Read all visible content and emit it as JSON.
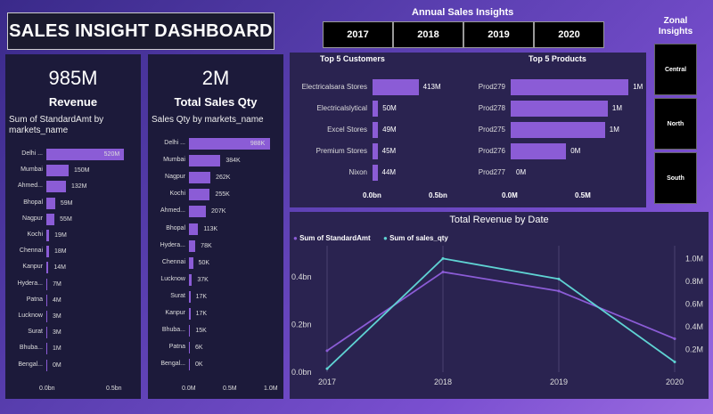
{
  "header": {
    "title": "SALES INSIGHT DASHBOARD"
  },
  "annual": {
    "title": "Annual Sales Insights",
    "years": [
      "2017",
      "2018",
      "2019",
      "2020"
    ]
  },
  "zonal": {
    "title": "Zonal Insights",
    "zones": [
      "Central",
      "North",
      "South"
    ]
  },
  "revenue_card": {
    "kpi_value": "985M",
    "kpi_label": "Revenue",
    "chart_title": "Sum of StandardAmt by markets_name",
    "rows": [
      {
        "label": "Delhi ...",
        "value": 520,
        "text": "520M"
      },
      {
        "label": "Mumbai",
        "value": 150,
        "text": "150M"
      },
      {
        "label": "Ahmed...",
        "value": 132,
        "text": "132M"
      },
      {
        "label": "Bhopal",
        "value": 59,
        "text": "59M"
      },
      {
        "label": "Nagpur",
        "value": 55,
        "text": "55M"
      },
      {
        "label": "Kochi",
        "value": 19,
        "text": "19M"
      },
      {
        "label": "Chennai",
        "value": 18,
        "text": "18M"
      },
      {
        "label": "Kanpur",
        "value": 14,
        "text": "14M"
      },
      {
        "label": "Hydera...",
        "value": 7,
        "text": "7M"
      },
      {
        "label": "Patna",
        "value": 4,
        "text": "4M"
      },
      {
        "label": "Lucknow",
        "value": 3,
        "text": "3M"
      },
      {
        "label": "Surat",
        "value": 3,
        "text": "3M"
      },
      {
        "label": "Bhuba...",
        "value": 1,
        "text": "1M"
      },
      {
        "label": "Bengal...",
        "value": 0,
        "text": "0M"
      }
    ],
    "max": 600,
    "axis": [
      "0.0bn",
      "0.5bn"
    ]
  },
  "qty_card": {
    "kpi_value": "2M",
    "kpi_label": "Total Sales Qty",
    "chart_title": "Sales Qty by markets_name",
    "rows": [
      {
        "label": "Delhi ...",
        "value": 988,
        "text": "988K"
      },
      {
        "label": "Mumbai",
        "value": 384,
        "text": "384K"
      },
      {
        "label": "Nagpur",
        "value": 262,
        "text": "262K"
      },
      {
        "label": "Kochi",
        "value": 255,
        "text": "255K"
      },
      {
        "label": "Ahmed...",
        "value": 207,
        "text": "207K"
      },
      {
        "label": "Bhopal",
        "value": 113,
        "text": "113K"
      },
      {
        "label": "Hydera...",
        "value": 78,
        "text": "78K"
      },
      {
        "label": "Chennai",
        "value": 50,
        "text": "50K"
      },
      {
        "label": "Lucknow",
        "value": 37,
        "text": "37K"
      },
      {
        "label": "Surat",
        "value": 17,
        "text": "17K"
      },
      {
        "label": "Kanpur",
        "value": 17,
        "text": "17K"
      },
      {
        "label": "Bhuba...",
        "value": 15,
        "text": "15K"
      },
      {
        "label": "Patna",
        "value": 6,
        "text": "6K"
      },
      {
        "label": "Bengal...",
        "value": 0,
        "text": "0K"
      }
    ],
    "max": 1000,
    "axis": [
      "0.0M",
      "0.5M",
      "1.0M"
    ]
  },
  "top_customers": {
    "title": "Top 5 Customers",
    "rows": [
      {
        "label": "Electricalsara Stores",
        "value": 413,
        "text": "413M"
      },
      {
        "label": "Electricalslytical",
        "value": 50,
        "text": "50M"
      },
      {
        "label": "Excel Stores",
        "value": 49,
        "text": "49M"
      },
      {
        "label": "Premium Stores",
        "value": 45,
        "text": "45M"
      },
      {
        "label": "Nixon",
        "value": 44,
        "text": "44M"
      }
    ],
    "max": 600,
    "axis": [
      "0.0bn",
      "0.5bn"
    ]
  },
  "top_products": {
    "title": "Top 5 Products",
    "rows": [
      {
        "label": "Prod279",
        "value": 0.85,
        "text": "1M"
      },
      {
        "label": "Prod278",
        "value": 0.7,
        "text": "1M"
      },
      {
        "label": "Prod275",
        "value": 0.68,
        "text": "1M"
      },
      {
        "label": "Prod276",
        "value": 0.4,
        "text": "0M"
      },
      {
        "label": "Prod277",
        "value": 0.0,
        "text": "0M"
      }
    ],
    "max": 0.9,
    "axis": [
      "0.0M",
      "0.5M"
    ]
  },
  "chart_data": {
    "type": "line",
    "title": "Total Revenue by Date",
    "x": [
      "2017",
      "2018",
      "2019",
      "2020"
    ],
    "series": [
      {
        "name": "Sum of StandardAmt",
        "axis": "left",
        "color": "#8b5cd6",
        "values": [
          0.09,
          0.42,
          0.34,
          0.14
        ]
      },
      {
        "name": "Sum of sales_qty",
        "axis": "right",
        "color": "#5fd3d3",
        "values": [
          0.03,
          1.0,
          0.82,
          0.09
        ]
      }
    ],
    "left_axis": {
      "ticks": [
        "0.0bn",
        "0.2bn",
        "0.4bn"
      ],
      "range": [
        0,
        0.5
      ]
    },
    "right_axis": {
      "ticks": [
        "0.2M",
        "0.4M",
        "0.6M",
        "0.8M",
        "1.0M"
      ],
      "range": [
        0,
        1.05
      ]
    }
  }
}
